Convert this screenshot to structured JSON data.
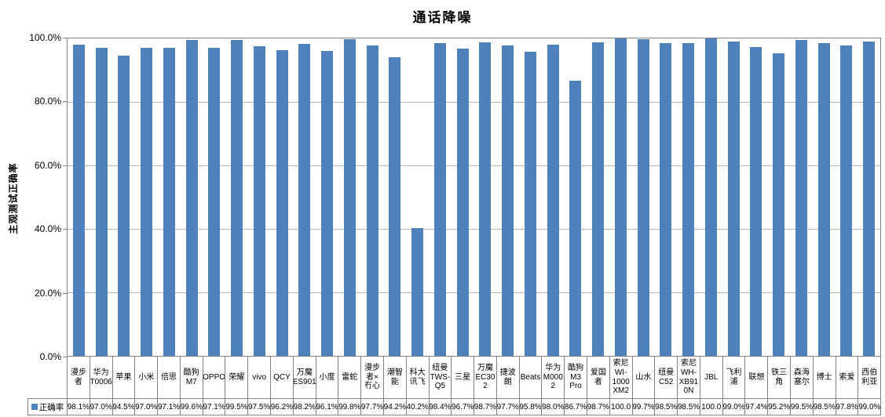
{
  "title": "通话降噪",
  "colors": {
    "bar": "#4F81BD",
    "gridline": "#b5b5b5",
    "axis": "#808080"
  },
  "chart_data": {
    "type": "bar",
    "title": "通话降噪",
    "xlabel": "",
    "ylabel": "主观测试正确率",
    "ylim": [
      0,
      100
    ],
    "ytick_labels": [
      "100.0%",
      "80.0%",
      "60.0%",
      "40.0%",
      "20.0%",
      "0.0%"
    ],
    "grid": true,
    "bar_color": "#4F81BD",
    "legend": {
      "label": "正确率",
      "marker_color": "#4F81BD",
      "position": "bottom-table-left"
    },
    "categories": [
      "漫步\n者",
      "华为\nT0006",
      "苹果",
      "小米",
      "倍思",
      "酷狗\nM7",
      "OPPO",
      "荣耀",
      "vivo",
      "QCY",
      "万魔\nES901",
      "小度",
      "雷蛇",
      "漫步\n者×\n冇心",
      "潮智\n能",
      "科大\n讯飞",
      "纽曼\nTWS-\nQ5",
      "三星",
      "万魔\nEC30\n2",
      "捷波\n朗",
      "Beats",
      "华为\nM000\n2",
      "酷狗\nM3\nPro",
      "爱国\n者",
      "索尼\nWI-\n1000\nXM2",
      "山水",
      "纽曼\nC52",
      "索尼\nWH-\nXB91\n0N",
      "JBL",
      "飞利\n浦",
      "联想",
      "铁三\n角",
      "森海\n塞尔",
      "博士",
      "索爱",
      "西伯\n利亚"
    ],
    "series": [
      {
        "name": "正确率",
        "values": [
          98.1,
          97.0,
          94.5,
          97.0,
          97.1,
          99.6,
          97.1,
          99.5,
          97.5,
          96.2,
          98.2,
          96.1,
          99.8,
          97.7,
          94.2,
          40.2,
          98.4,
          96.7,
          98.7,
          97.7,
          95.8,
          98.0,
          86.7,
          98.7,
          100.0,
          99.7,
          98.5,
          98.5,
          100.0,
          99.0,
          97.4,
          95.2,
          99.5,
          98.5,
          97.8,
          99.0
        ],
        "value_labels": [
          "98.1%",
          "97.0%",
          "94.5%",
          "97.0%",
          "97.1%",
          "99.6%",
          "97.1%",
          "99.5%",
          "97.5%",
          "96.2%",
          "98.2%",
          "96.1%",
          "99.8%",
          "97.7%",
          "94.2%",
          "40.2%",
          "98.4%",
          "96.7%",
          "98.7%",
          "97.7%",
          "95.8%",
          "98.0%",
          "86.7%",
          "98.7%",
          "100.0",
          "99.7%",
          "98.5%",
          "98.5%",
          "100.0",
          "99.0%",
          "97.4%",
          "95.2%",
          "99.5%",
          "98.5%",
          "97.8%",
          "99.0%"
        ]
      }
    ]
  }
}
